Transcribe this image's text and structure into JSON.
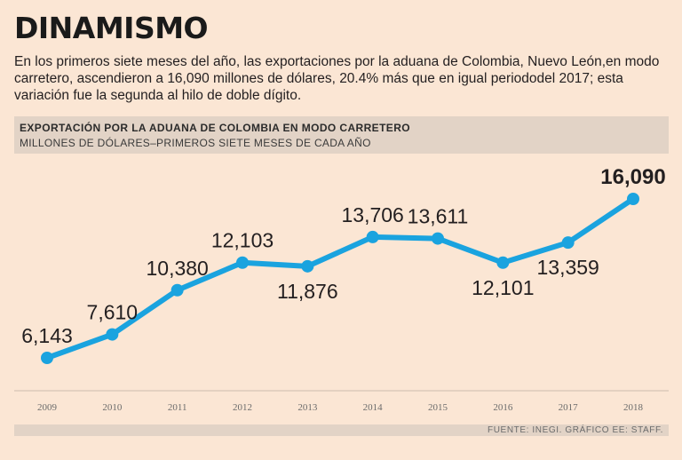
{
  "headline": "DINAMISMO",
  "intro": "En los primeros siete meses del año, las exportaciones por la aduana de Colombia, Nuevo León,en modo carretero, ascendieron a 16,090 millones de dólares, 20.4% más que en igual periododel 2017; esta variación fue la segunda al hilo de doble dígito.",
  "colors": {
    "line": "#1aa3df",
    "background": "#fbe6d4",
    "band": "#e2d3c6"
  },
  "chart_data": {
    "type": "line",
    "title": "EXPORTACIÓN POR LA ADUANA DE COLOMBIA EN MODO CARRETERO",
    "subtitle": "MILLONES DE DÓLARES–PRIMEROS SIETE MESES DE CADA AÑO",
    "categories": [
      "2009",
      "2010",
      "2011",
      "2012",
      "2013",
      "2014",
      "2015",
      "2016",
      "2017",
      "2018"
    ],
    "values": [
      6143,
      7610,
      10380,
      12103,
      11876,
      13706,
      13611,
      12101,
      13359,
      16090
    ],
    "value_labels": [
      "6,143",
      "7,610",
      "10,380",
      "12,103",
      "11,876",
      "13,706",
      "13,611",
      "12,101",
      "13,359",
      "16,090"
    ],
    "label_positions": [
      "above",
      "above",
      "above",
      "above",
      "below",
      "above",
      "above",
      "below",
      "below",
      "above"
    ],
    "ylim": [
      6143,
      16090
    ],
    "grid": false,
    "source": "FUENTE: INEGI.  GRÁFICO EE: STAFF."
  }
}
